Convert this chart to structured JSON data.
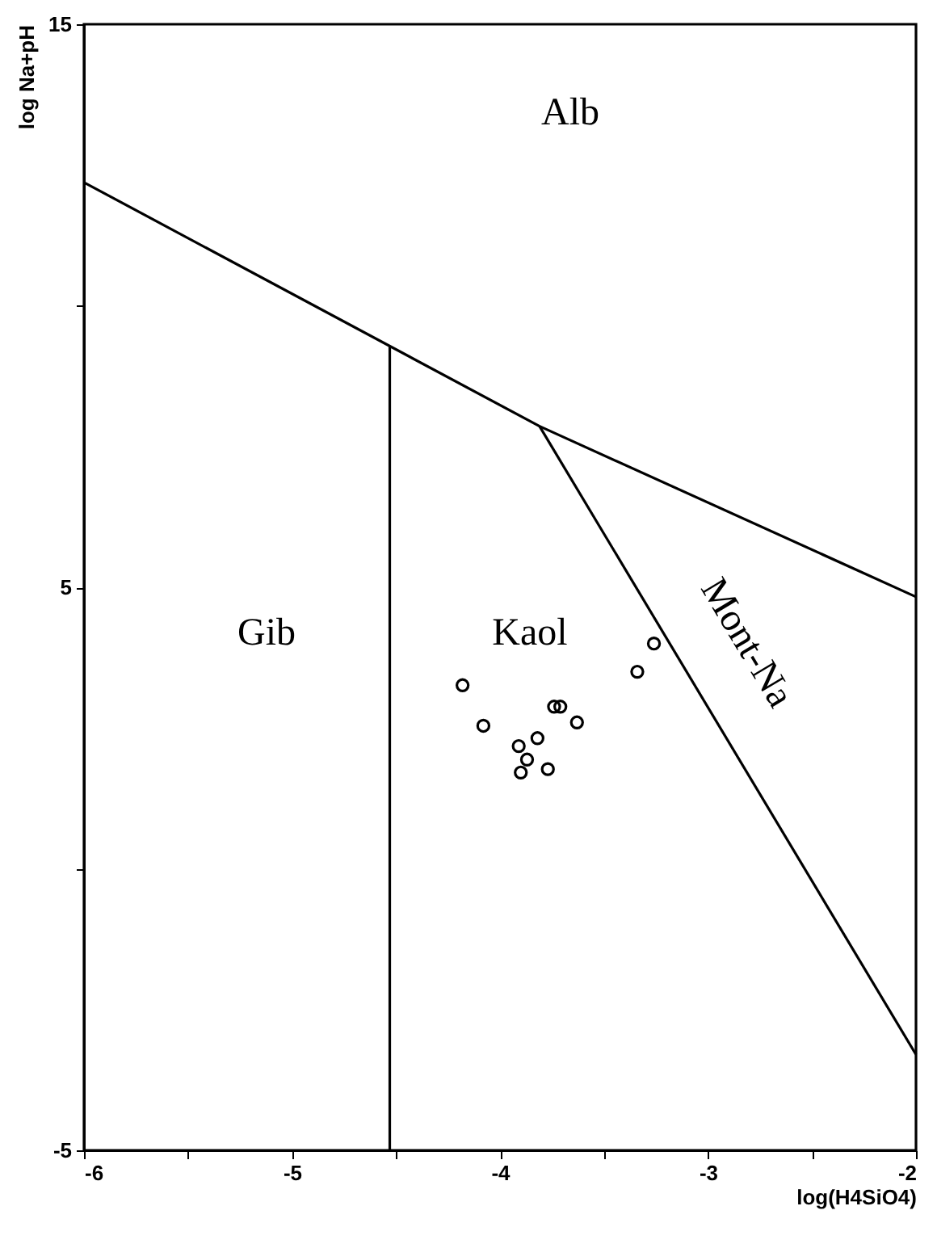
{
  "chart_data": {
    "type": "scatter",
    "xlabel": "log(H4SiO4)",
    "ylabel": "log Na+pH",
    "xlim": [
      -6,
      -2
    ],
    "ylim": [
      -5,
      15
    ],
    "xticks": [
      -6,
      {
        "value": -5.5,
        "label": null
      },
      -5,
      {
        "value": -4.5,
        "label": null
      },
      -4,
      {
        "value": -3.5,
        "label": null
      },
      -3,
      {
        "value": -2.5,
        "label": null
      },
      -2
    ],
    "yticks": [
      -5,
      {
        "value": 0,
        "label": null
      },
      5,
      {
        "value": 10,
        "label": null
      },
      15
    ],
    "grid": false,
    "series": [
      {
        "type": "line",
        "color": "#000000",
        "marker": "none",
        "x": [
          -6,
          -3.81,
          -2
        ],
        "values": [
          12.19,
          7.86,
          4.83
        ]
      },
      {
        "type": "line",
        "color": "#000000",
        "marker": "none",
        "x": [
          -3.81,
          -2
        ],
        "values": [
          7.86,
          -3.3
        ]
      },
      {
        "type": "line",
        "color": "#000000",
        "marker": "none",
        "x": [
          -4.53,
          -4.53
        ],
        "values": [
          9.29,
          -5
        ]
      },
      {
        "color": "#000000",
        "marker": "circle",
        "x": [
          -4.18,
          -4.08,
          -3.91,
          -3.82,
          -3.74,
          -3.71,
          -3.63,
          -3.87,
          -3.9,
          -3.77,
          -3.34,
          -3.26
        ],
        "values": [
          3.26,
          2.54,
          2.18,
          2.32,
          2.88,
          2.88,
          2.6,
          1.94,
          1.71,
          1.77,
          3.5,
          4.0
        ]
      }
    ],
    "annotations": [
      "Alb",
      "Gib",
      "Kaol",
      "Mont-Na"
    ]
  }
}
